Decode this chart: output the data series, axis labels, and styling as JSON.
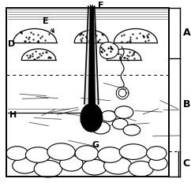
{
  "title": "",
  "bg_color": "#ffffff",
  "border_color": "#000000",
  "label_A": "A",
  "label_B": "B",
  "label_C": "C",
  "label_D": "D",
  "label_E": "E",
  "label_F": "F",
  "label_G": "G",
  "label_H": "H",
  "figsize": [
    2.42,
    2.36
  ],
  "dpi": 100
}
